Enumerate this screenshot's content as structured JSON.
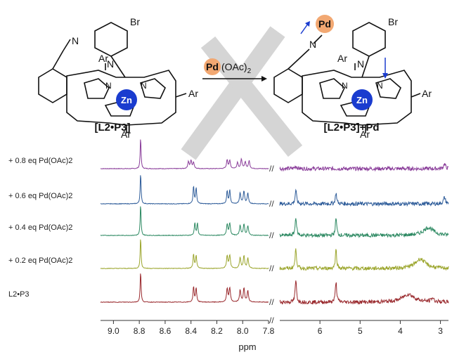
{
  "scheme": {
    "atom_br": "Br",
    "atom_n": "N",
    "atom_ar": "Ar",
    "metal_zn": "Zn",
    "reagent_pd": "Pd",
    "reagent_oac": "(OAc)",
    "reagent_sub": "2",
    "product_pd": "Pd",
    "label_left": "[L2•P3]",
    "label_right_main": "[L2•P3]",
    "label_right_suffix": "+Pd"
  },
  "chart_data": {
    "type": "line",
    "title": "",
    "xlabel": "ppm",
    "ylabel": "",
    "x_axis_reversed": true,
    "x_axis_broken_between": [
      7.8,
      7.0
    ],
    "segments": [
      {
        "xlim": [
          9.1,
          7.8
        ],
        "ticks": [
          "9.0",
          "8.8",
          "8.6",
          "8.4",
          "8.2",
          "8.0",
          "7.8"
        ]
      },
      {
        "xlim": [
          7.0,
          2.8
        ],
        "ticks": [
          "6",
          "5",
          "4",
          "3"
        ]
      }
    ],
    "series": [
      {
        "name": "+ 0.8 eq Pd(OAc)2",
        "color": "#8a3d9a",
        "peaks": [
          {
            "x": 8.79,
            "h": 1.0,
            "w": 0.004
          },
          {
            "x": 8.42,
            "h": 0.22,
            "w": 0.006
          },
          {
            "x": 8.4,
            "h": 0.25,
            "w": 0.006
          },
          {
            "x": 8.38,
            "h": 0.2,
            "w": 0.006
          },
          {
            "x": 8.12,
            "h": 0.28,
            "w": 0.006
          },
          {
            "x": 8.1,
            "h": 0.25,
            "w": 0.006
          },
          {
            "x": 8.04,
            "h": 0.2,
            "w": 0.006
          },
          {
            "x": 8.01,
            "h": 0.3,
            "w": 0.006
          },
          {
            "x": 7.98,
            "h": 0.22,
            "w": 0.006
          },
          {
            "x": 7.95,
            "h": 0.25,
            "w": 0.006
          },
          {
            "x": 6.6,
            "h": 0.08,
            "w": 0.03
          },
          {
            "x": 2.9,
            "h": 0.15,
            "w": 0.03
          }
        ]
      },
      {
        "name": "+ 0.6 eq Pd(OAc)2",
        "color": "#2f5d9a",
        "peaks": [
          {
            "x": 8.79,
            "h": 1.0,
            "w": 0.004
          },
          {
            "x": 8.38,
            "h": 0.55,
            "w": 0.005
          },
          {
            "x": 8.36,
            "h": 0.5,
            "w": 0.005
          },
          {
            "x": 8.12,
            "h": 0.42,
            "w": 0.005
          },
          {
            "x": 8.1,
            "h": 0.45,
            "w": 0.005
          },
          {
            "x": 8.02,
            "h": 0.35,
            "w": 0.006
          },
          {
            "x": 7.99,
            "h": 0.4,
            "w": 0.006
          },
          {
            "x": 7.96,
            "h": 0.33,
            "w": 0.006
          },
          {
            "x": 6.6,
            "h": 0.45,
            "w": 0.02
          },
          {
            "x": 5.6,
            "h": 0.35,
            "w": 0.02
          },
          {
            "x": 2.9,
            "h": 0.2,
            "w": 0.03
          }
        ]
      },
      {
        "name": "+ 0.4 eq Pd(OAc)2",
        "color": "#2e8a63",
        "peaks": [
          {
            "x": 8.79,
            "h": 1.0,
            "w": 0.004
          },
          {
            "x": 8.37,
            "h": 0.4,
            "w": 0.005
          },
          {
            "x": 8.35,
            "h": 0.38,
            "w": 0.005
          },
          {
            "x": 8.12,
            "h": 0.35,
            "w": 0.006
          },
          {
            "x": 8.1,
            "h": 0.38,
            "w": 0.006
          },
          {
            "x": 8.02,
            "h": 0.32,
            "w": 0.006
          },
          {
            "x": 7.99,
            "h": 0.36,
            "w": 0.006
          },
          {
            "x": 7.96,
            "h": 0.3,
            "w": 0.006
          },
          {
            "x": 6.6,
            "h": 0.6,
            "w": 0.02
          },
          {
            "x": 5.6,
            "h": 0.55,
            "w": 0.02
          },
          {
            "x": 3.3,
            "h": 0.25,
            "w": 0.15
          }
        ]
      },
      {
        "name": "+ 0.2 eq Pd(OAc)2",
        "color": "#9ca62e",
        "peaks": [
          {
            "x": 8.79,
            "h": 1.0,
            "w": 0.004
          },
          {
            "x": 8.38,
            "h": 0.45,
            "w": 0.005
          },
          {
            "x": 8.36,
            "h": 0.42,
            "w": 0.005
          },
          {
            "x": 8.12,
            "h": 0.4,
            "w": 0.006
          },
          {
            "x": 8.1,
            "h": 0.42,
            "w": 0.006
          },
          {
            "x": 8.02,
            "h": 0.35,
            "w": 0.006
          },
          {
            "x": 7.99,
            "h": 0.4,
            "w": 0.006
          },
          {
            "x": 7.96,
            "h": 0.33,
            "w": 0.006
          },
          {
            "x": 6.6,
            "h": 0.65,
            "w": 0.02
          },
          {
            "x": 5.6,
            "h": 0.6,
            "w": 0.02
          },
          {
            "x": 3.5,
            "h": 0.3,
            "w": 0.15
          }
        ]
      },
      {
        "name": "L2•P3",
        "color": "#9a2a2e",
        "peaks": [
          {
            "x": 8.79,
            "h": 1.0,
            "w": 0.004
          },
          {
            "x": 8.38,
            "h": 0.5,
            "w": 0.005
          },
          {
            "x": 8.36,
            "h": 0.45,
            "w": 0.005
          },
          {
            "x": 8.12,
            "h": 0.42,
            "w": 0.006
          },
          {
            "x": 8.1,
            "h": 0.45,
            "w": 0.006
          },
          {
            "x": 8.02,
            "h": 0.38,
            "w": 0.006
          },
          {
            "x": 7.99,
            "h": 0.45,
            "w": 0.006
          },
          {
            "x": 7.96,
            "h": 0.36,
            "w": 0.006
          },
          {
            "x": 6.6,
            "h": 0.7,
            "w": 0.02
          },
          {
            "x": 5.6,
            "h": 0.65,
            "w": 0.02
          },
          {
            "x": 3.8,
            "h": 0.25,
            "w": 0.18
          },
          {
            "x": 3.2,
            "h": 0.12,
            "w": 0.04
          }
        ]
      }
    ]
  }
}
